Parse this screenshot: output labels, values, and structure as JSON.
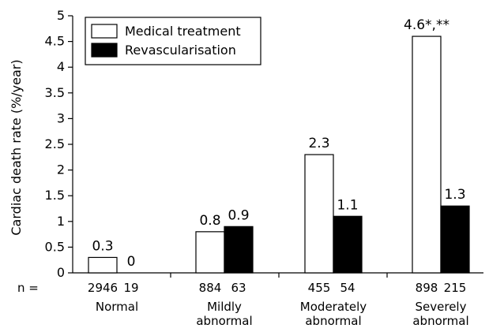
{
  "chart_data": {
    "type": "bar",
    "title": "",
    "xlabel": "",
    "ylabel": "Cardiac death rate (%/year)",
    "ylim": [
      0,
      5
    ],
    "yticks": [
      "0",
      "0.5",
      "1",
      "1.5",
      "2",
      "2.5",
      "3",
      "3.5",
      "4",
      "4.5",
      "5"
    ],
    "categories": [
      [
        "Normal"
      ],
      [
        "Mildly",
        "abnormal"
      ],
      [
        "Moderately",
        "abnormal"
      ],
      [
        "Severely",
        "abnormal"
      ]
    ],
    "n_prefix": "n =",
    "counts": [
      [
        "2946",
        "19"
      ],
      [
        "884",
        "63"
      ],
      [
        "455",
        "54"
      ],
      [
        "898",
        "215"
      ]
    ],
    "series": [
      {
        "name": "Medical treatment",
        "values": [
          0.3,
          0.8,
          2.3,
          4.6
        ],
        "labels": [
          "0.3",
          "0.8",
          "2.3",
          "4.6*,**"
        ],
        "fill": "#ffffff"
      },
      {
        "name": "Revascularisation",
        "values": [
          0,
          0.9,
          1.1,
          1.3
        ],
        "labels": [
          "0",
          "0.9",
          "1.1",
          "1.3"
        ],
        "fill": "#000000"
      }
    ],
    "legend_position": "top-left",
    "grid": false
  }
}
